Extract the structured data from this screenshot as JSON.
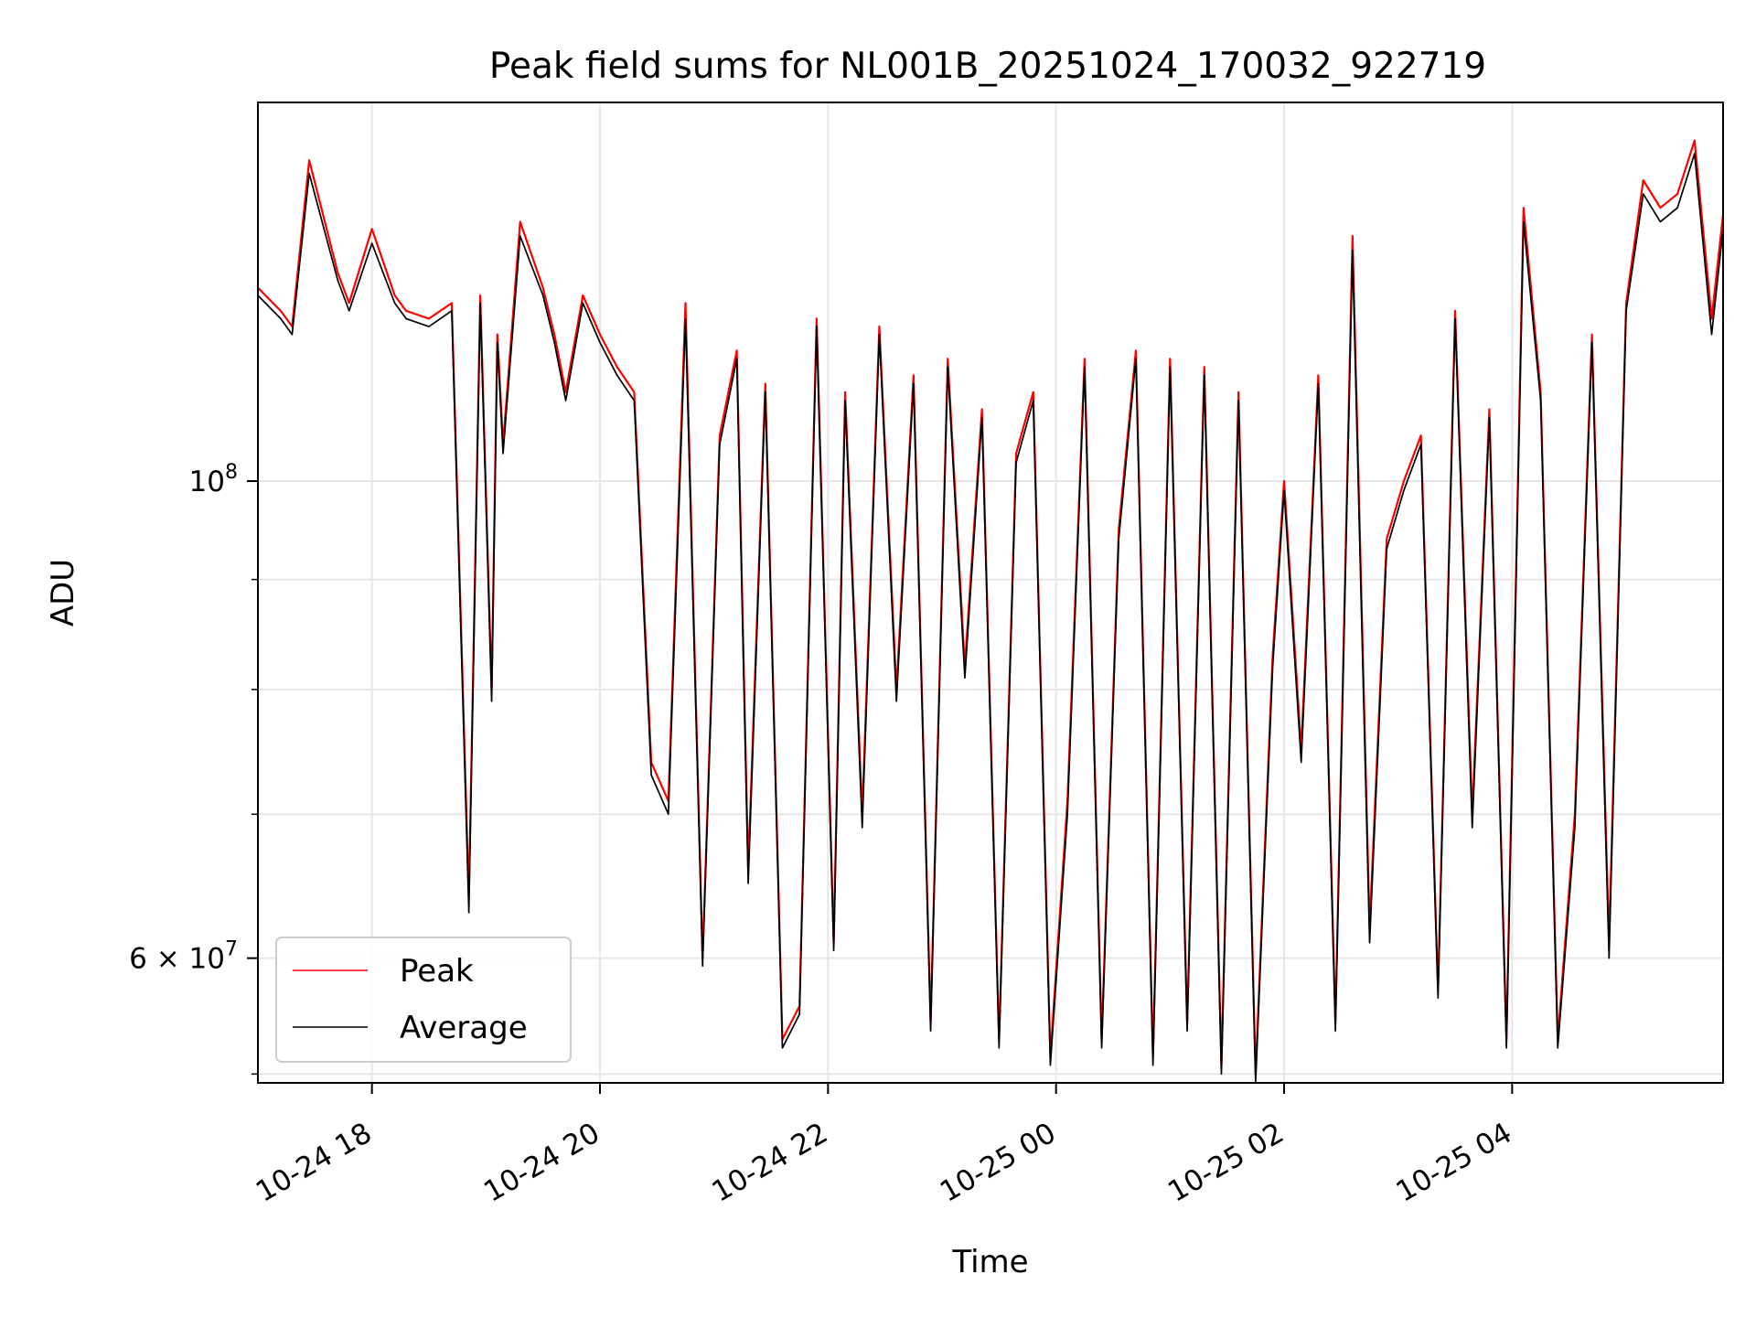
{
  "chart_data": {
    "type": "line",
    "title": "Peak field sums for NL001B_20251024_170032_922719",
    "xlabel": "Time",
    "ylabel": "ADU",
    "yscale": "log",
    "ylim": [
      52500000,
      150000000
    ],
    "xlim": [
      "2025-10-24 17:00",
      "2025-10-25 05:51"
    ],
    "grid": true,
    "legend_position": "lower-left",
    "x_ticks": [
      {
        "label": "10-24 18",
        "time": "2025-10-24 18:00"
      },
      {
        "label": "10-24 20",
        "time": "2025-10-24 20:00"
      },
      {
        "label": "10-24 22",
        "time": "2025-10-24 22:00"
      },
      {
        "label": "10-25 00",
        "time": "2025-10-25 00:00"
      },
      {
        "label": "10-25 02",
        "time": "2025-10-25 02:00"
      },
      {
        "label": "10-25 04",
        "time": "2025-10-25 04:00"
      }
    ],
    "y_major_ticks": [
      {
        "value": 60000000,
        "mantissa": "6",
        "exponent": "7"
      },
      {
        "value": 100000000,
        "base": "10",
        "exponent": "8"
      }
    ],
    "y_minor_ticks": [
      53000000,
      70000000,
      80000000,
      90000000
    ],
    "series": [
      {
        "name": "Peak",
        "color": "#ff0000",
        "hours": [
          0,
          0.2,
          0.3,
          0.45,
          0.7,
          0.8,
          1.0,
          1.2,
          1.3,
          1.5,
          1.7,
          1.85,
          1.95,
          2.05,
          2.1,
          2.15,
          2.3,
          2.5,
          2.6,
          2.7,
          2.85,
          3.0,
          3.15,
          3.3,
          3.45,
          3.6,
          3.75,
          3.9,
          4.05,
          4.2,
          4.3,
          4.45,
          4.6,
          4.75,
          4.9,
          5.05,
          5.15,
          5.3,
          5.45,
          5.6,
          5.75,
          5.9,
          6.05,
          6.2,
          6.35,
          6.5,
          6.65,
          6.8,
          6.95,
          7.1,
          7.25,
          7.4,
          7.55,
          7.7,
          7.85,
          8.0,
          8.15,
          8.3,
          8.45,
          8.6,
          8.75,
          8.9,
          9.0,
          9.15,
          9.3,
          9.45,
          9.6,
          9.75,
          9.9,
          10.05,
          10.2,
          10.35,
          10.5,
          10.65,
          10.8,
          10.95,
          11.1,
          11.25,
          11.4,
          11.55,
          11.7,
          11.85,
          12.0,
          12.15,
          12.3,
          12.45,
          12.6,
          12.75,
          12.85
        ],
        "values": [
          123000000,
          120000000,
          118000000,
          141000000,
          125000000,
          121000000,
          131000000,
          122000000,
          120000000,
          119000000,
          121000000,
          64000000,
          122000000,
          80000000,
          117000000,
          104000000,
          132000000,
          123000000,
          117000000,
          110000000,
          122000000,
          117000000,
          113000000,
          110000000,
          74000000,
          71000000,
          121000000,
          60000000,
          105000000,
          115000000,
          66000000,
          111000000,
          55000000,
          57000000,
          119000000,
          61000000,
          110000000,
          70000000,
          118000000,
          80000000,
          112000000,
          56000000,
          114000000,
          82000000,
          108000000,
          55000000,
          103000000,
          110000000,
          54000000,
          71000000,
          114000000,
          55000000,
          95000000,
          115000000,
          54000000,
          114000000,
          56000000,
          113000000,
          53500000,
          110000000,
          53000000,
          83000000,
          100000000,
          75000000,
          112000000,
          56000000,
          130000000,
          62000000,
          94000000,
          100000000,
          105000000,
          58000000,
          120000000,
          70000000,
          108000000,
          55000000,
          134000000,
          110000000,
          55000000,
          70000000,
          117000000,
          61000000,
          121000000,
          138000000,
          134000000,
          136000000,
          144000000,
          119000000,
          133000000
        ]
      },
      {
        "name": "Average",
        "color": "#000000",
        "hours": [
          0,
          0.2,
          0.3,
          0.45,
          0.7,
          0.8,
          1.0,
          1.2,
          1.3,
          1.5,
          1.7,
          1.85,
          1.95,
          2.05,
          2.1,
          2.15,
          2.3,
          2.5,
          2.6,
          2.7,
          2.85,
          3.0,
          3.15,
          3.3,
          3.45,
          3.6,
          3.75,
          3.9,
          4.05,
          4.2,
          4.3,
          4.45,
          4.6,
          4.75,
          4.9,
          5.05,
          5.15,
          5.3,
          5.45,
          5.6,
          5.75,
          5.9,
          6.05,
          6.2,
          6.35,
          6.5,
          6.65,
          6.8,
          6.95,
          7.1,
          7.25,
          7.4,
          7.55,
          7.7,
          7.85,
          8.0,
          8.15,
          8.3,
          8.45,
          8.6,
          8.75,
          8.9,
          9.0,
          9.15,
          9.3,
          9.45,
          9.6,
          9.75,
          9.9,
          10.05,
          10.2,
          10.35,
          10.5,
          10.65,
          10.8,
          10.95,
          11.1,
          11.25,
          11.4,
          11.55,
          11.7,
          11.85,
          12.0,
          12.15,
          12.3,
          12.45,
          12.6,
          12.75,
          12.85
        ],
        "values": [
          122000000,
          119000000,
          117000000,
          139000000,
          124000000,
          120000000,
          129000000,
          121000000,
          119000000,
          118000000,
          120000000,
          63000000,
          121000000,
          79000000,
          116000000,
          103000000,
          130000000,
          122000000,
          116000000,
          109000000,
          121000000,
          116000000,
          112000000,
          109000000,
          73000000,
          70000000,
          119000000,
          59500000,
          104000000,
          114000000,
          65000000,
          110000000,
          54500000,
          56500000,
          118000000,
          60500000,
          109000000,
          69000000,
          117000000,
          79000000,
          111000000,
          55500000,
          113000000,
          81000000,
          107000000,
          54500000,
          102000000,
          109000000,
          53500000,
          70000000,
          113000000,
          54500000,
          94000000,
          114000000,
          53500000,
          113000000,
          55500000,
          112000000,
          53000000,
          109000000,
          52500000,
          82000000,
          99000000,
          74000000,
          111000000,
          55500000,
          128000000,
          61000000,
          93000000,
          99000000,
          104000000,
          57500000,
          119000000,
          69000000,
          107000000,
          54500000,
          132000000,
          109000000,
          54500000,
          69000000,
          116000000,
          60000000,
          120000000,
          136000000,
          132000000,
          134000000,
          142000000,
          117000000,
          131000000
        ]
      }
    ]
  }
}
